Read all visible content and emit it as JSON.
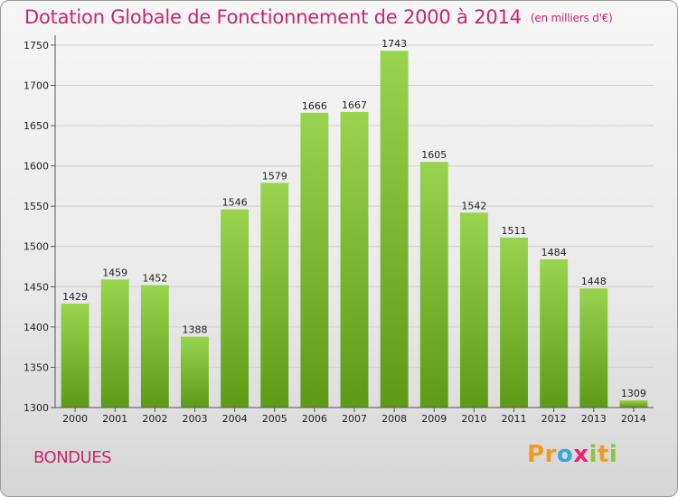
{
  "title": "Dotation Globale de Fonctionnement de 2000 à 2014",
  "subtitle": "(en milliers d'€)",
  "commune": "BONDUES",
  "logo": {
    "p1": "Pr",
    "p2": "o",
    "p3": "x",
    "p4": "i",
    "p5": "t",
    "p6": "i"
  },
  "colors": {
    "bar_top": "#9ad44e",
    "bar_bottom": "#5e9a16",
    "title": "#c8266e"
  },
  "chart_data": {
    "type": "bar",
    "categories": [
      "2000",
      "2001",
      "2002",
      "2003",
      "2004",
      "2005",
      "2006",
      "2007",
      "2008",
      "2009",
      "2010",
      "2011",
      "2012",
      "2013",
      "2014"
    ],
    "values": [
      1429,
      1459,
      1452,
      1388,
      1546,
      1579,
      1666,
      1667,
      1743,
      1605,
      1542,
      1511,
      1484,
      1448,
      1309
    ],
    "yticks": [
      1300,
      1350,
      1400,
      1450,
      1500,
      1550,
      1600,
      1650,
      1700,
      1750
    ],
    "ylim": [
      1300,
      1760
    ],
    "grid": true
  }
}
